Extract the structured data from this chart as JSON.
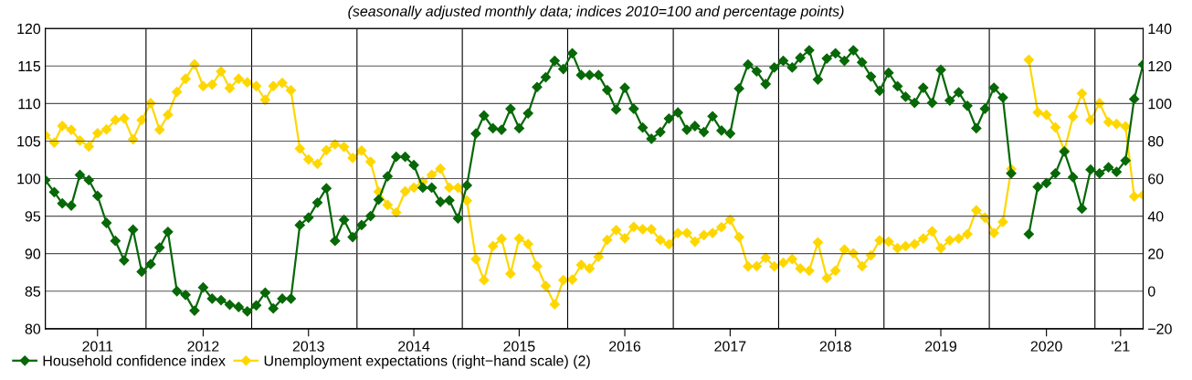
{
  "chart_data": {
    "type": "line",
    "subtitle": "(seasonally adjusted monthly data; indices 2010=100 and percentage points)",
    "x": [
      "2011-01",
      "2011-02",
      "2011-03",
      "2011-04",
      "2011-05",
      "2011-06",
      "2011-07",
      "2011-08",
      "2011-09",
      "2011-10",
      "2011-11",
      "2011-12",
      "2012-01",
      "2012-02",
      "2012-03",
      "2012-04",
      "2012-05",
      "2012-06",
      "2012-07",
      "2012-08",
      "2012-09",
      "2012-10",
      "2012-11",
      "2012-12",
      "2013-01",
      "2013-02",
      "2013-03",
      "2013-04",
      "2013-05",
      "2013-06",
      "2013-07",
      "2013-08",
      "2013-09",
      "2013-10",
      "2013-11",
      "2013-12",
      "2014-01",
      "2014-02",
      "2014-03",
      "2014-04",
      "2014-05",
      "2014-06",
      "2014-07",
      "2014-08",
      "2014-09",
      "2014-10",
      "2014-11",
      "2014-12",
      "2015-01",
      "2015-02",
      "2015-03",
      "2015-04",
      "2015-05",
      "2015-06",
      "2015-07",
      "2015-08",
      "2015-09",
      "2015-10",
      "2015-11",
      "2015-12",
      "2016-01",
      "2016-02",
      "2016-03",
      "2016-04",
      "2016-05",
      "2016-06",
      "2016-07",
      "2016-08",
      "2016-09",
      "2016-10",
      "2016-11",
      "2016-12",
      "2017-01",
      "2017-02",
      "2017-03",
      "2017-04",
      "2017-05",
      "2017-06",
      "2017-07",
      "2017-08",
      "2017-09",
      "2017-10",
      "2017-11",
      "2017-12",
      "2018-01",
      "2018-02",
      "2018-03",
      "2018-04",
      "2018-05",
      "2018-06",
      "2018-07",
      "2018-08",
      "2018-09",
      "2018-10",
      "2018-11",
      "2018-12",
      "2019-01",
      "2019-02",
      "2019-03",
      "2019-04",
      "2019-05",
      "2019-06",
      "2019-07",
      "2019-08",
      "2019-09",
      "2019-10",
      "2019-11",
      "2019-12",
      "2020-01",
      "2020-02",
      "2020-03",
      "2020-04",
      "2020-05",
      "2020-06",
      "2020-07",
      "2020-08",
      "2020-09",
      "2020-10",
      "2020-11",
      "2020-12",
      "2021-01",
      "2021-02",
      "2021-03",
      "2021-04",
      "2021-05",
      "2021-06"
    ],
    "series": [
      {
        "name": "Household confidence index",
        "color": "#076807",
        "values": [
          99.8,
          98.2,
          96.7,
          96.4,
          100.5,
          99.8,
          97.7,
          94.1,
          91.7,
          89.1,
          93.2,
          87.6,
          88.6,
          90.8,
          92.9,
          85.0,
          84.5,
          82.4,
          85.5,
          84.0,
          83.8,
          83.2,
          82.9,
          82.3,
          83.1,
          84.8,
          82.7,
          84.0,
          84.0,
          93.8,
          94.8,
          96.8,
          98.7,
          91.7,
          94.5,
          92.2,
          93.8,
          95.0,
          97.2,
          100.3,
          102.9,
          102.9,
          101.8,
          98.8,
          98.8,
          96.9,
          97.1,
          94.7,
          99.1,
          106.0,
          108.4,
          106.7,
          106.5,
          109.3,
          106.7,
          108.7,
          112.2,
          113.5,
          115.7,
          114.6,
          116.7,
          113.8,
          113.8,
          113.8,
          111.8,
          109.2,
          112.1,
          109.3,
          106.8,
          105.3,
          106.2,
          108.0,
          108.8,
          106.5,
          107.0,
          106.2,
          108.3,
          106.4,
          106.0,
          112.0,
          115.2,
          114.3,
          112.6,
          114.8,
          115.7,
          114.8,
          116.1,
          117.1,
          113.2,
          116.0,
          116.7,
          115.7,
          117.1,
          115.5,
          113.6,
          111.7,
          114.1,
          112.3,
          110.9,
          110.1,
          112.1,
          110.1,
          114.5,
          110.4,
          111.5,
          109.7,
          106.7,
          109.3,
          112.1,
          110.8,
          100.7,
          null,
          92.6,
          98.9,
          99.4,
          100.7,
          103.6,
          100.2,
          96.0,
          101.2,
          100.7,
          101.5,
          100.9,
          102.4,
          110.6,
          115.2
        ]
      },
      {
        "name": "Unemployment expectations (right−hand scale) (2)",
        "color": "#ffd700",
        "axis": "y2",
        "values": [
          83.1,
          79.2,
          88.1,
          86.0,
          80.3,
          77.1,
          84.2,
          86.2,
          91.2,
          92.1,
          80.9,
          91.2,
          100.2,
          86.0,
          94.0,
          106.2,
          113.2,
          120.9,
          109.3,
          110.1,
          117.1,
          108.2,
          113.2,
          111.3,
          109.3,
          102.0,
          109.3,
          111.0,
          107.1,
          76.0,
          70.2,
          67.9,
          75.2,
          78.3,
          76.9,
          71.0,
          74.9,
          69.0,
          53.0,
          46.0,
          41.9,
          53.2,
          55.2,
          58.3,
          62.0,
          65.3,
          55.2,
          55.2,
          48.2,
          17.1,
          5.9,
          24.0,
          27.9,
          9.3,
          28.1,
          25.1,
          13.3,
          2.8,
          -7.0,
          5.9,
          6.2,
          14.0,
          12.1,
          18.3,
          27.3,
          32.6,
          28.2,
          34.3,
          33.0,
          33.0,
          27.3,
          25.0,
          31.0,
          31.0,
          26.4,
          29.9,
          31.0,
          34.1,
          38.1,
          28.8,
          13.2,
          13.3,
          17.8,
          13.2,
          15.2,
          17.1,
          12.1,
          10.9,
          26.0,
          7.0,
          10.9,
          22.2,
          20.2,
          13.3,
          19.1,
          27.1,
          26.4,
          22.9,
          24.0,
          25.1,
          28.1,
          31.9,
          22.9,
          27.1,
          28.1,
          30.4,
          43.1,
          39.2,
          31.0,
          36.9,
          65.1,
          null,
          123.3,
          95.3,
          94.0,
          87.3,
          74.9,
          93.0,
          105.4,
          91.2,
          100.2,
          90.1,
          89.1,
          87.8,
          50.5,
          51.3
        ]
      }
    ],
    "xlim": [
      "2011-01",
      "2021-06"
    ],
    "xticks": [
      {
        "value": "2011-07",
        "label": "2011"
      },
      {
        "value": "2012-07",
        "label": "2012"
      },
      {
        "value": "2013-07",
        "label": "2013"
      },
      {
        "value": "2014-07",
        "label": "2014"
      },
      {
        "value": "2015-07",
        "label": "2015"
      },
      {
        "value": "2016-07",
        "label": "2016"
      },
      {
        "value": "2017-07",
        "label": "2017"
      },
      {
        "value": "2018-07",
        "label": "2018"
      },
      {
        "value": "2019-07",
        "label": "2019"
      },
      {
        "value": "2020-07",
        "label": "2020"
      },
      {
        "value": "2021-03-15",
        "label": "'21"
      }
    ],
    "ylim": [
      80,
      120
    ],
    "yticks": [
      80,
      85,
      90,
      95,
      100,
      105,
      110,
      115,
      120
    ],
    "y2lim": [
      -20,
      140
    ],
    "y2ticks": [
      {
        "value": -20,
        "label": "−20"
      },
      0,
      20,
      40,
      60,
      80,
      100,
      120,
      140
    ],
    "ref_lines": [
      {
        "axis": "x",
        "value": "2011-12-16",
        "color": "#000000"
      },
      {
        "axis": "x",
        "value": "2012-12-16",
        "color": "#000000"
      },
      {
        "axis": "x",
        "value": "2013-12-16",
        "color": "#000000"
      },
      {
        "axis": "x",
        "value": "2014-12-16",
        "color": "#000000"
      },
      {
        "axis": "x",
        "value": "2015-12-16",
        "color": "#000000"
      },
      {
        "axis": "x",
        "value": "2016-12-16",
        "color": "#000000"
      },
      {
        "axis": "x",
        "value": "2017-12-16",
        "color": "#000000"
      },
      {
        "axis": "x",
        "value": "2018-12-16",
        "color": "#000000"
      },
      {
        "axis": "x",
        "value": "2019-12-16",
        "color": "#000000"
      },
      {
        "axis": "x",
        "value": "2020-12-16",
        "color": "#000000"
      }
    ],
    "grid": "y",
    "legend": "bottom",
    "marker": "diamond",
    "line_style": "solid"
  }
}
